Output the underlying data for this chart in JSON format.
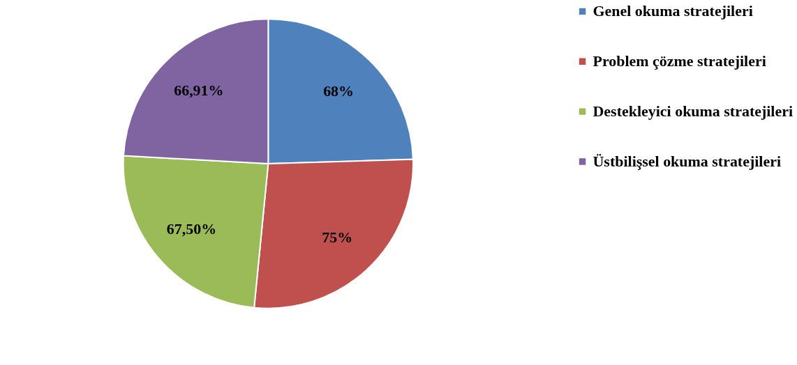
{
  "chart_data": {
    "type": "pie",
    "categories": [
      "Genel okuma stratejileri",
      "Problem çözme stratejileri",
      "Destekleyici okuma stratejileri",
      "Üstbilişsel okuma stratejileri"
    ],
    "values": [
      68,
      75,
      67.5,
      66.91
    ],
    "value_labels": [
      "68%",
      "75%",
      "67,50%",
      "66,91%"
    ],
    "colors": [
      "#4f81bd",
      "#c0504d",
      "#9bbb59",
      "#8064a2"
    ],
    "legend": "right"
  }
}
